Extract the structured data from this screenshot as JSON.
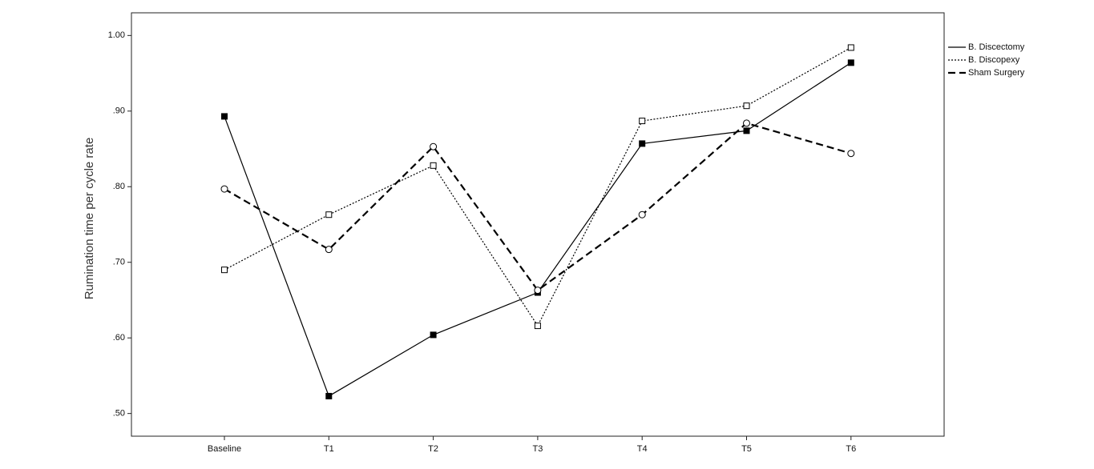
{
  "chart_data": {
    "type": "line",
    "y_label": "Rumination time per cycle rate",
    "categories": [
      "Baseline",
      "T1",
      "T2",
      "T3",
      "T4",
      "T5",
      "T6"
    ],
    "series": [
      {
        "name": "B. Discectomy",
        "color": "#000000",
        "dash": "solid",
        "marker": "square-filled",
        "values": [
          0.893,
          0.523,
          0.604,
          0.66,
          0.857,
          0.874,
          0.964
        ]
      },
      {
        "name": "B. Discopexy",
        "color": "#000000",
        "dash": "dotted",
        "marker": "square-open",
        "values": [
          0.69,
          0.763,
          0.828,
          0.616,
          0.887,
          0.907,
          0.984
        ]
      },
      {
        "name": "Sham Surgery",
        "color": "#000000",
        "dash": "dashed",
        "marker": "circle-open",
        "values": [
          0.797,
          0.717,
          0.853,
          0.663,
          0.763,
          0.884,
          0.844
        ]
      }
    ],
    "ylim": [
      0.47,
      1.03
    ],
    "yticks": [
      {
        "value": 0.5,
        "label": ".50"
      },
      {
        "value": 0.6,
        "label": ".60"
      },
      {
        "value": 0.7,
        "label": ".70"
      },
      {
        "value": 0.8,
        "label": ".80"
      },
      {
        "value": 0.9,
        "label": ".90"
      },
      {
        "value": 1.0,
        "label": "1.00"
      }
    ],
    "grid": false,
    "legend": "outside-top-right"
  }
}
